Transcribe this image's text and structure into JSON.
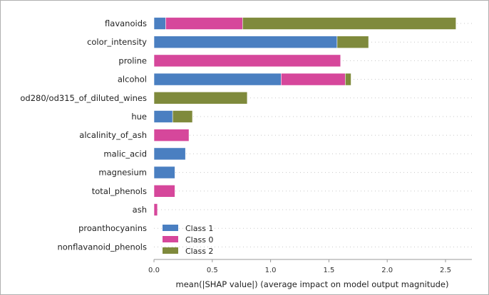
{
  "chart_data": {
    "type": "bar",
    "orientation": "horizontal",
    "stacked": true,
    "title": "",
    "xlabel": "mean(|SHAP value|) (average impact on model output magnitude)",
    "ylabel": "",
    "xlim": [
      0,
      2.7
    ],
    "xticks": [
      "0.0",
      "0.5",
      "1.0",
      "1.5",
      "2.0",
      "2.5"
    ],
    "legend_position": "lower-left",
    "categories": [
      "flavanoids",
      "color_intensity",
      "proline",
      "alcohol",
      "od280/od315_of_diluted_wines",
      "hue",
      "alcalinity_of_ash",
      "malic_acid",
      "magnesium",
      "total_phenols",
      "ash",
      "proanthocyanins",
      "nonflavanoid_phenols"
    ],
    "series": [
      {
        "name": "Class 1",
        "color": "#4a7fc1",
        "values": [
          0.1,
          1.57,
          0.0,
          1.09,
          0.0,
          0.16,
          0.0,
          0.27,
          0.18,
          0.0,
          0.0,
          0.0,
          0.0
        ]
      },
      {
        "name": "Class 0",
        "color": "#d6479b",
        "values": [
          0.66,
          0.0,
          1.6,
          0.55,
          0.0,
          0.0,
          0.3,
          0.0,
          0.0,
          0.18,
          0.03,
          0.0,
          0.0
        ]
      },
      {
        "name": "Class 2",
        "color": "#7f8a3c",
        "values": [
          1.83,
          0.27,
          0.0,
          0.05,
          0.8,
          0.17,
          0.0,
          0.0,
          0.0,
          0.0,
          0.0,
          0.0,
          0.0
        ]
      }
    ]
  }
}
